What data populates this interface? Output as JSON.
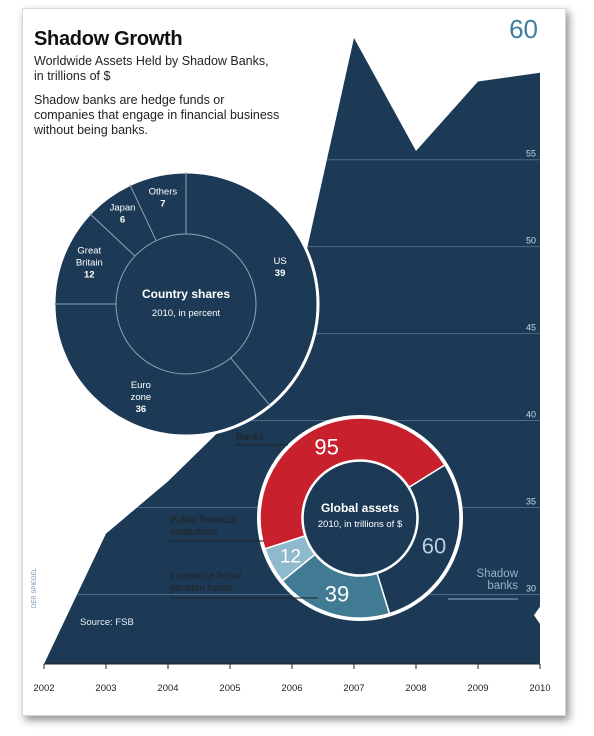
{
  "header": {
    "title": "Shadow Growth",
    "subtitle_line1": "Worldwide Assets Held by Shadow Banks,",
    "subtitle_line2": "in trillions of $",
    "description": "Shadow banks are hedge funds or companies that engage in financial business without being banks."
  },
  "source": "Source: FSB",
  "credit": "DER SPIEGEL",
  "peak_label": "60",
  "colors": {
    "navy": "#1c3a55",
    "grid": "#4b6b86",
    "red": "#c8202c",
    "teal": "#417a93",
    "lightteal": "#8fb9cd",
    "peak": "#3e7fa0"
  },
  "chart_data": [
    {
      "type": "area",
      "title": "Shadow Growth",
      "ylabel": "in trillions of $",
      "x": [
        "2002",
        "2003",
        "2004",
        "2005",
        "2006",
        "2007",
        "2008",
        "2009",
        "2010"
      ],
      "values": [
        26,
        33.5,
        36.5,
        40,
        46,
        62,
        55.5,
        59.5,
        60
      ],
      "ylim": [
        26,
        62
      ],
      "yticks": [
        30,
        35,
        40,
        45,
        50,
        55
      ],
      "grid": true
    },
    {
      "type": "pie",
      "title": "Country shares",
      "subtitle": "2010, in percent",
      "slices": [
        {
          "label_line1": "US",
          "label_line2": "",
          "value": 39
        },
        {
          "label_line1": "Euro",
          "label_line2": "zone",
          "value": 36
        },
        {
          "label_line1": "Great",
          "label_line2": "Britain",
          "value": 12
        },
        {
          "label_line1": "Japan",
          "label_line2": "",
          "value": 6
        },
        {
          "label_line1": "Others",
          "label_line2": "",
          "value": 7
        }
      ]
    },
    {
      "type": "pie",
      "title": "Global assets",
      "subtitle": "2010, in trillions of $",
      "slices": [
        {
          "label_line1": "Banks",
          "label_line2": "",
          "value": 95,
          "color": "#c8202c"
        },
        {
          "label_line1": "Shadow",
          "label_line2": "banks",
          "value": 60,
          "color": "#1c3a55"
        },
        {
          "label_line1": "Insurance firms/",
          "label_line2": "pension funds",
          "value": 39,
          "color": "#417a93"
        },
        {
          "label_line1": "Public financial",
          "label_line2": "institutions",
          "value": 12,
          "color": "#8fb9cd"
        }
      ]
    }
  ]
}
